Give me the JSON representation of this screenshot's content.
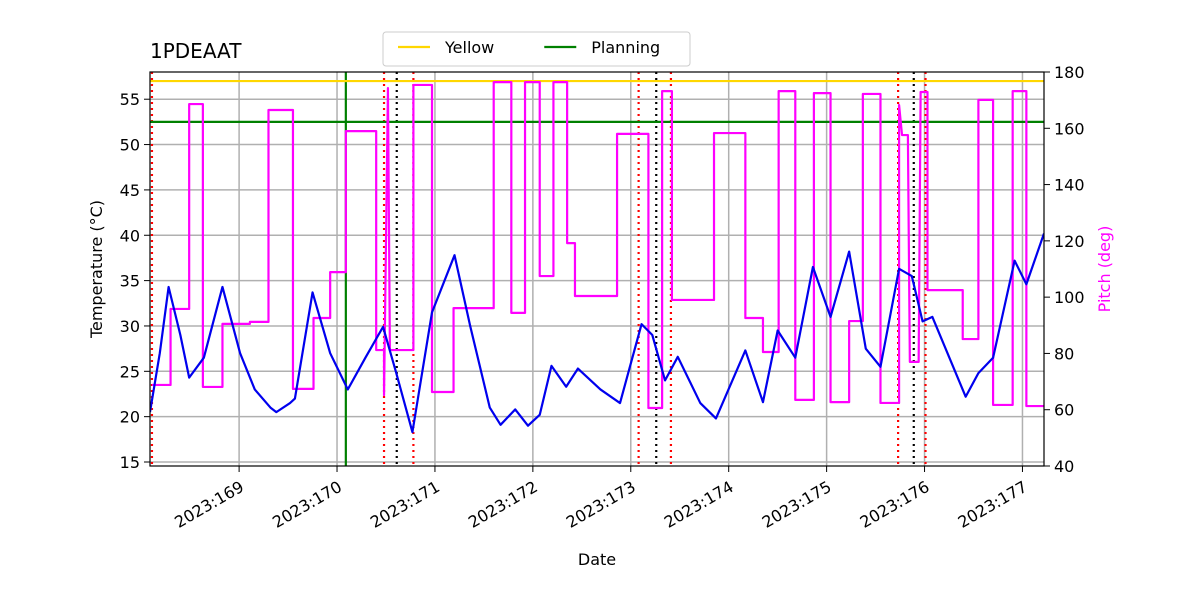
{
  "chart_data": {
    "type": "line",
    "title": "1PDEAAT",
    "xlabel": "Date",
    "ylabel": "Temperature (°C)",
    "y2label": "Pitch (deg)",
    "xlim": [
      168.09,
      177.22
    ],
    "ylim": [
      14.56,
      58
    ],
    "y2lim": [
      40,
      180
    ],
    "xticks": [
      {
        "value": 169,
        "label": "2023:169"
      },
      {
        "value": 170,
        "label": "2023:170"
      },
      {
        "value": 171,
        "label": "2023:171"
      },
      {
        "value": 172,
        "label": "2023:172"
      },
      {
        "value": 173,
        "label": "2023:173"
      },
      {
        "value": 174,
        "label": "2023:174"
      },
      {
        "value": 175,
        "label": "2023:175"
      },
      {
        "value": 176,
        "label": "2023:176"
      },
      {
        "value": 177,
        "label": "2023:177"
      }
    ],
    "yticks": [
      15,
      20,
      25,
      30,
      35,
      40,
      45,
      50,
      55
    ],
    "y2ticks": [
      40,
      60,
      80,
      100,
      120,
      140,
      160,
      180
    ],
    "y2color": "#ff00ff",
    "grid": true,
    "legend": "upper center",
    "hlines": [
      {
        "name": "Yellow",
        "value": 57,
        "color": "#ffd700"
      },
      {
        "name": "Planning",
        "value": 52.5,
        "color": "#008000"
      }
    ],
    "vlines": [
      {
        "x": 170.09,
        "color": "#008000",
        "style": "solid"
      },
      {
        "x": 168.11,
        "color": "#ff0000",
        "style": "dotted"
      },
      {
        "x": 170.48,
        "color": "#ff0000",
        "style": "dotted"
      },
      {
        "x": 170.78,
        "color": "#ff0000",
        "style": "dotted"
      },
      {
        "x": 173.08,
        "color": "#ff0000",
        "style": "dotted"
      },
      {
        "x": 173.41,
        "color": "#ff0000",
        "style": "dotted"
      },
      {
        "x": 175.73,
        "color": "#ff0000",
        "style": "dotted"
      },
      {
        "x": 176.01,
        "color": "#ff0000",
        "style": "dotted"
      },
      {
        "x": 170.61,
        "color": "#000000",
        "style": "dotted"
      },
      {
        "x": 173.26,
        "color": "#000000",
        "style": "dotted"
      },
      {
        "x": 175.89,
        "color": "#000000",
        "style": "dotted"
      }
    ],
    "series": [
      {
        "color": "#ff00ff",
        "axis": "y2",
        "x": [
          168.11,
          168.3,
          168.3,
          168.49,
          168.49,
          168.63,
          168.63,
          168.83,
          168.83,
          169.11,
          169.11,
          169.3,
          169.3,
          169.55,
          169.55,
          169.76,
          169.76,
          169.93,
          169.93,
          170.09,
          170.09,
          170.4,
          170.4,
          170.48,
          170.48,
          170.52,
          170.54,
          170.78,
          170.78,
          170.97,
          170.97,
          171.19,
          171.19,
          171.6,
          171.6,
          171.78,
          171.78,
          171.92,
          171.92,
          172.07,
          172.07,
          172.21,
          172.21,
          172.35,
          172.35,
          172.43,
          172.43,
          172.86,
          172.86,
          173.18,
          173.18,
          173.32,
          173.32,
          173.42,
          173.42,
          173.85,
          173.85,
          174.17,
          174.17,
          174.35,
          174.35,
          174.51,
          174.51,
          174.68,
          174.68,
          174.87,
          174.87,
          175.04,
          175.04,
          175.23,
          175.23,
          175.37,
          175.37,
          175.55,
          175.55,
          175.74,
          175.74,
          175.77,
          175.83,
          175.85,
          175.94,
          175.96,
          176.03,
          176.03,
          176.39,
          176.39,
          176.55,
          176.55,
          176.7,
          176.7,
          176.9,
          176.9,
          177.04,
          177.04,
          177.22
        ],
        "values": [
          68.8,
          68.8,
          95.8,
          95.8,
          168.6,
          168.6,
          68.1,
          68.1,
          90.5,
          90.5,
          91.2,
          91.2,
          166.5,
          166.5,
          67.4,
          67.4,
          92.6,
          92.6,
          108.9,
          108.9,
          159.0,
          159.0,
          81.2,
          81.2,
          65.2,
          174.3,
          81.2,
          81.2,
          175.4,
          175.4,
          66.3,
          66.3,
          96.1,
          96.1,
          176.4,
          176.4,
          94.4,
          94.4,
          176.4,
          176.4,
          107.5,
          107.5,
          176.4,
          176.4,
          119.2,
          119.2,
          100.4,
          100.4,
          158.0,
          158.0,
          60.6,
          60.6,
          173.2,
          173.2,
          99.0,
          99.0,
          158.3,
          158.3,
          92.6,
          92.6,
          80.5,
          80.5,
          173.2,
          173.2,
          63.5,
          63.5,
          172.5,
          172.5,
          62.7,
          62.7,
          91.5,
          91.5,
          172.2,
          172.2,
          62.4,
          62.4,
          168.3,
          157.6,
          157.6,
          77.0,
          77.0,
          172.9,
          172.9,
          102.5,
          102.5,
          85.1,
          85.1,
          170.1,
          170.1,
          61.7,
          61.7,
          173.2,
          173.2,
          61.3,
          61.3
        ]
      },
      {
        "color": "#0000ee",
        "axis": "y",
        "x": [
          168.09,
          168.19,
          168.28,
          168.4,
          168.49,
          168.64,
          168.83,
          169.01,
          169.16,
          169.32,
          169.38,
          169.52,
          169.57,
          169.75,
          169.93,
          170.11,
          170.29,
          170.47,
          170.6,
          170.77,
          170.97,
          171.2,
          171.36,
          171.56,
          171.67,
          171.82,
          171.95,
          172.07,
          172.19,
          172.34,
          172.46,
          172.69,
          172.89,
          173.11,
          173.22,
          173.35,
          173.48,
          173.71,
          173.87,
          174.17,
          174.35,
          174.5,
          174.68,
          174.86,
          175.04,
          175.23,
          175.4,
          175.55,
          175.74,
          175.87,
          175.98,
          176.08,
          176.42,
          176.55,
          176.7,
          176.92,
          177.04,
          177.22
        ],
        "values": [
          20.5,
          27,
          34.3,
          29,
          24.3,
          26.5,
          34.3,
          27,
          23,
          21,
          20.5,
          21.5,
          22,
          33.7,
          27,
          23,
          26.5,
          29.9,
          25,
          18.3,
          31.5,
          37.8,
          30,
          21,
          19.1,
          20.8,
          19,
          20.2,
          25.6,
          23.3,
          25.3,
          23,
          21.5,
          30.2,
          29,
          24,
          26.6,
          21.5,
          19.8,
          27.3,
          21.6,
          29.5,
          26.5,
          36.5,
          31,
          38.2,
          27.5,
          25.5,
          36.3,
          35.5,
          30.5,
          31,
          22.2,
          24.8,
          26.5,
          37.2,
          34.6,
          40.2
        ]
      }
    ]
  }
}
